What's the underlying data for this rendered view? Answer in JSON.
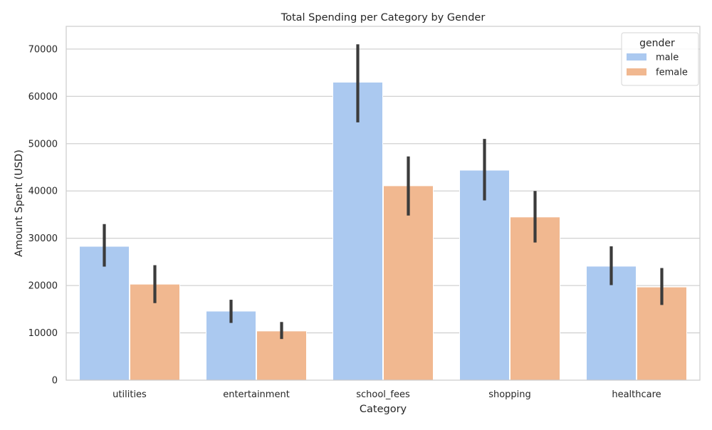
{
  "chart_data": {
    "type": "bar",
    "title": "Total Spending per Category by Gender",
    "xlabel": "Category",
    "ylabel": "Amount Spent (USD)",
    "ylim": [
      0,
      74800
    ],
    "yticks": [
      0,
      10000,
      20000,
      30000,
      40000,
      50000,
      60000,
      70000
    ],
    "yticks_labels": [
      "0",
      "10000",
      "20000",
      "30000",
      "40000",
      "50000",
      "60000",
      "70000"
    ],
    "grid": "horizontal",
    "legend": {
      "title": "gender",
      "placement": "top-right"
    },
    "categories": [
      "utilities",
      "entertainment",
      "school_fees",
      "shopping",
      "healthcare"
    ],
    "series": [
      {
        "name": "male",
        "color": "#abc9f0",
        "values": [
          28300,
          14600,
          63000,
          44400,
          24100
        ],
        "ci_low": [
          24000,
          12100,
          54500,
          38000,
          20100
        ],
        "ci_high": [
          33000,
          17000,
          71000,
          51000,
          28300
        ]
      },
      {
        "name": "female",
        "color": "#f1b890",
        "values": [
          20300,
          10400,
          41100,
          34500,
          19700
        ],
        "ci_low": [
          16300,
          8700,
          34800,
          29100,
          15900
        ],
        "ci_high": [
          24300,
          12300,
          47300,
          40000,
          23700
        ]
      }
    ],
    "error_bar_color": "#3b3b3b"
  }
}
